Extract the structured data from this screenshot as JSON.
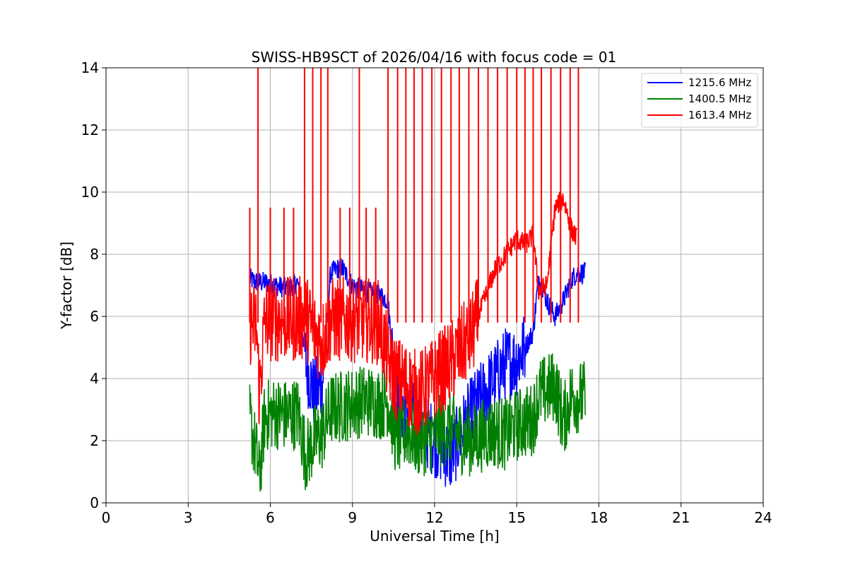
{
  "chart_data": {
    "type": "line",
    "title": "SWISS-HB9SCT of 2026/04/16 with focus code = 01",
    "xlabel": "Universal Time [h]",
    "ylabel": "Y-factor [dB]",
    "xlim": [
      0,
      24
    ],
    "ylim": [
      0,
      14
    ],
    "xticks": [
      0,
      3,
      6,
      9,
      12,
      15,
      18,
      21,
      24
    ],
    "yticks": [
      0,
      2,
      4,
      6,
      8,
      10,
      12,
      14
    ],
    "grid": true,
    "legend_position": "top-right",
    "series": [
      {
        "name": "1215.6 MHz",
        "color": "#0000ff",
        "x": [
          5.25,
          5.5,
          5.8,
          6.2,
          6.6,
          7.0,
          7.3,
          7.6,
          7.9,
          8.2,
          8.6,
          9.0,
          9.2,
          9.5,
          10.0,
          10.3,
          10.6,
          11.0,
          11.4,
          11.8,
          12.2,
          12.6,
          13.0,
          13.4,
          13.8,
          14.2,
          14.6,
          15.0,
          15.3,
          15.6,
          15.8,
          16.1,
          16.4,
          16.7,
          17.0,
          17.2,
          17.5
        ],
        "y": [
          7.2,
          7.1,
          7.1,
          7.0,
          6.9,
          7.1,
          4.5,
          3.5,
          3.8,
          7.4,
          7.6,
          7.0,
          6.9,
          6.8,
          6.7,
          6.5,
          3.2,
          3.0,
          2.5,
          2.2,
          1.8,
          1.5,
          2.3,
          3.0,
          3.5,
          4.0,
          4.5,
          4.6,
          5.0,
          5.5,
          7.3,
          6.5,
          6.0,
          6.5,
          7.2,
          7.4,
          7.4
        ]
      },
      {
        "name": "1400.5 MHz",
        "color": "#008000",
        "x": [
          5.25,
          5.5,
          5.6,
          5.8,
          6.2,
          6.6,
          7.0,
          7.3,
          7.6,
          7.9,
          8.2,
          8.6,
          9.0,
          9.5,
          10.0,
          10.3,
          10.6,
          11.0,
          11.4,
          11.8,
          12.2,
          12.6,
          13.0,
          13.4,
          13.8,
          14.2,
          14.6,
          15.0,
          15.3,
          15.6,
          15.8,
          16.1,
          16.4,
          16.7,
          17.0,
          17.2,
          17.5
        ],
        "y": [
          2.7,
          1.5,
          0.8,
          2.8,
          2.9,
          2.8,
          2.9,
          1.5,
          2.0,
          2.2,
          3.0,
          3.1,
          3.2,
          3.3,
          3.2,
          3.3,
          2.0,
          2.3,
          2.0,
          2.1,
          2.3,
          2.4,
          2.1,
          2.0,
          2.2,
          2.3,
          2.2,
          2.5,
          2.6,
          2.7,
          3.5,
          3.6,
          3.8,
          2.6,
          3.5,
          3.4,
          3.4
        ]
      },
      {
        "name": "1613.4 MHz",
        "color": "#ff0000",
        "x": [
          5.25,
          5.5,
          5.6,
          5.8,
          6.2,
          6.6,
          7.0,
          7.3,
          7.6,
          7.9,
          8.2,
          8.6,
          9.0,
          9.5,
          10.0,
          10.3,
          10.6,
          11.0,
          11.4,
          11.8,
          12.2,
          12.6,
          13.0,
          13.4,
          13.8,
          14.2,
          14.6,
          15.0,
          15.3,
          15.6,
          15.8,
          16.1,
          16.4,
          16.7,
          17.0,
          17.2
        ],
        "y": [
          5.8,
          5.7,
          3.5,
          5.9,
          5.9,
          5.9,
          5.9,
          6.0,
          5.5,
          5.2,
          5.9,
          5.9,
          5.9,
          5.9,
          5.8,
          4.5,
          4.0,
          3.8,
          3.5,
          3.8,
          4.2,
          4.5,
          5.0,
          5.5,
          6.5,
          7.5,
          8.0,
          8.5,
          8.3,
          8.6,
          6.8,
          7.0,
          9.5,
          9.8,
          8.8,
          8.5
        ]
      }
    ],
    "spikes": {
      "description_values_from_axes": true,
      "x": [
        5.25,
        5.55,
        6.0,
        6.5,
        6.85,
        7.25,
        7.55,
        7.85,
        8.1,
        8.55,
        8.9,
        9.25,
        9.5,
        9.85,
        10.3,
        10.65,
        10.95,
        11.25,
        11.55,
        11.9,
        12.25,
        12.6,
        12.9,
        13.25,
        13.6,
        13.95,
        14.3,
        14.65,
        15.0,
        15.3,
        15.6,
        15.9,
        16.25,
        16.6,
        16.95,
        17.25
      ],
      "y": [
        9.5,
        14,
        9.5,
        9.5,
        9.5,
        14,
        14,
        14,
        14,
        9.5,
        9.5,
        14,
        9.5,
        9.5,
        14,
        14,
        14,
        14,
        14,
        14,
        14,
        14,
        14,
        14,
        14,
        14,
        14,
        14,
        14,
        14,
        14,
        14,
        14,
        14,
        14,
        14
      ]
    }
  }
}
